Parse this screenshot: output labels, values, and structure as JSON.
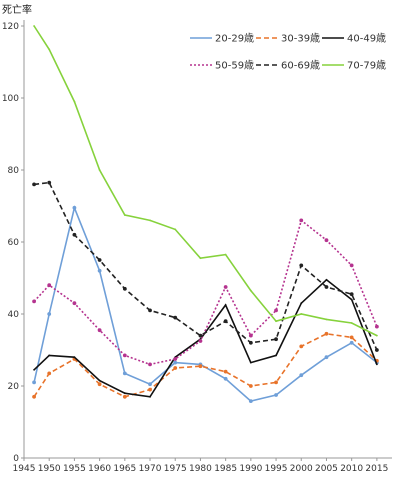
{
  "chart_data": {
    "type": "line",
    "ylabel": "死亡率",
    "xlim": [
      1945,
      2018
    ],
    "ylim": [
      0,
      120
    ],
    "x_ticks": [
      1945,
      1950,
      1955,
      1960,
      1965,
      1970,
      1975,
      1980,
      1985,
      1990,
      1995,
      2000,
      2005,
      2010,
      2015
    ],
    "y_ticks": [
      0,
      20,
      40,
      60,
      80,
      100,
      120
    ],
    "grid": false,
    "legend": "top-right",
    "x": [
      1947,
      1950,
      1955,
      1960,
      1965,
      1970,
      1975,
      1980,
      1985,
      1990,
      1995,
      2000,
      2005,
      2010,
      2015
    ],
    "series": [
      {
        "name": "20-29歳",
        "color": "#6f9fd8",
        "dash": "solid",
        "marker": "dot",
        "values": [
          21,
          40,
          69.5,
          52,
          23.5,
          20.5,
          26.5,
          26,
          22,
          15.8,
          17.5,
          23,
          28,
          32,
          26.5
        ]
      },
      {
        "name": "30-39歳",
        "color": "#e8732a",
        "dash": "dashed",
        "marker": "dot",
        "values": [
          17,
          23.5,
          27.5,
          20.5,
          17,
          19,
          25,
          25.5,
          24,
          20,
          21,
          31,
          34.5,
          33.5,
          27
        ]
      },
      {
        "name": "40-49歳",
        "color": "#111111",
        "dash": "solid",
        "marker": "none",
        "values": [
          24.5,
          28.5,
          28,
          21.5,
          18,
          17,
          28,
          33,
          42.5,
          26.5,
          28.5,
          43,
          49.5,
          44,
          26
        ]
      },
      {
        "name": "50-59歳",
        "color": "#b5338f",
        "dash": "dotted",
        "marker": "dot",
        "values": [
          43.5,
          48,
          43,
          35.5,
          28.5,
          26,
          27.5,
          32.5,
          47.5,
          34,
          41,
          66,
          60.5,
          53.5,
          36.5
        ]
      },
      {
        "name": "60-69歳",
        "color": "#222222",
        "dash": "dashed",
        "marker": "dot",
        "values": [
          76,
          76.5,
          62,
          55,
          47,
          41,
          39,
          34,
          38,
          32,
          33,
          53.5,
          47.5,
          45.5,
          30
        ]
      },
      {
        "name": "70-79歳",
        "color": "#86d23c",
        "dash": "solid",
        "marker": "none",
        "values": [
          120,
          113.5,
          99,
          80,
          67.5,
          66,
          63.5,
          55.5,
          56.5,
          46.5,
          38,
          40,
          38.5,
          37.5,
          34
        ]
      }
    ]
  }
}
